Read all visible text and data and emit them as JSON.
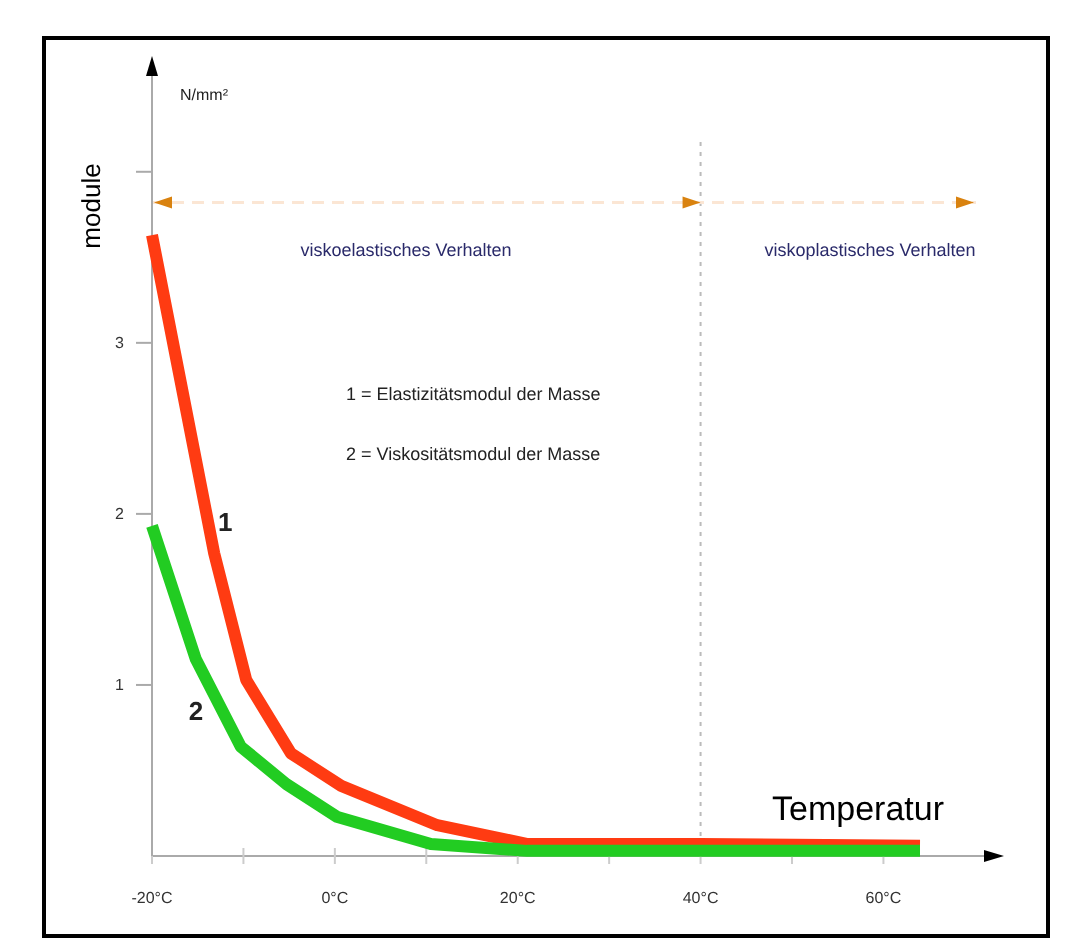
{
  "chart_data": {
    "type": "line",
    "xlabel": "Temperatur",
    "ylabel": "module",
    "xlim": [
      -20,
      71
    ],
    "ylim": [
      0,
      4.56
    ],
    "xticks": [
      {
        "value": -20,
        "label": "-20°C"
      },
      {
        "value": -10,
        "label": null
      },
      {
        "value": 0,
        "label": "0°C"
      },
      {
        "value": 10,
        "label": null
      },
      {
        "value": 20,
        "label": "20°C"
      },
      {
        "value": 30,
        "label": null
      },
      {
        "value": 40,
        "label": "40°C"
      },
      {
        "value": 50,
        "label": null
      },
      {
        "value": 60,
        "label": "60°C"
      }
    ],
    "yticks": [
      {
        "value": 1,
        "label": "1"
      },
      {
        "value": 2,
        "label": "2"
      },
      {
        "value": 3,
        "label": "3"
      },
      {
        "value": 4,
        "label": null
      }
    ],
    "marker": "none",
    "line_style": "solid",
    "series": [
      {
        "color": "#ff3b12",
        "x": [
          -20,
          -13.2,
          -9.7,
          -4.8,
          0.7,
          11.2,
          21.1,
          40,
          64
        ],
        "values": [
          3.63,
          1.77,
          1.03,
          0.6,
          0.41,
          0.18,
          0.07,
          0.07,
          0.06
        ]
      },
      {
        "color": "#22cc22",
        "x": [
          -20,
          -15.2,
          -10.3,
          -5.3,
          0.2,
          10.5,
          21,
          40,
          64
        ],
        "values": [
          1.93,
          1.15,
          0.64,
          0.42,
          0.23,
          0.07,
          0.03,
          0.03,
          0.03
        ]
      }
    ],
    "ref_lines": [
      {
        "axis": "x",
        "value": 40,
        "color": "#bbbbbb",
        "line_style": "dotted"
      },
      {
        "axis": "y",
        "value": 3.82,
        "color": "#fbe6d4",
        "line_style": "dashed"
      }
    ],
    "annotations": [
      {
        "text": "1",
        "x": -12,
        "y": 1.9
      },
      "2",
      "viskoelastisches Verhalten",
      "viskoplastisches Verhalten",
      "N/mm²",
      "1 = Elastizitätsmodul der Masse",
      "2 = Viskositätsmodul der Masse"
    ]
  }
}
